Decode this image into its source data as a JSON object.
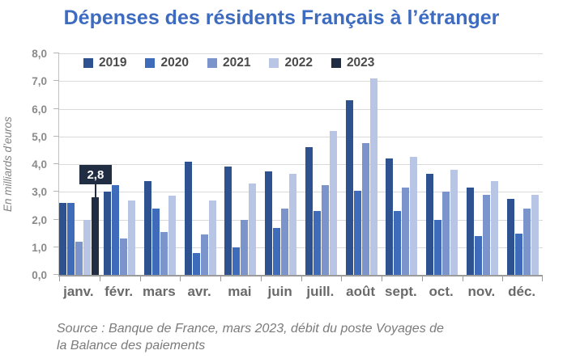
{
  "page": {
    "title": "Dépenses des résidents Français à l’étranger",
    "source_lines": [
      "Source : Banque de France, mars 2023, débit du poste Voyages de",
      "la Balance des paiements"
    ]
  },
  "colors": {
    "title": "#3d6bc0",
    "grid": "#d9d9d9",
    "axis": "#9b9b9b",
    "y_axis_line": "#c2c2c2",
    "tick_label": "#8a8a8a",
    "month_label": "#6a6a6a",
    "legend_label": "#4a4a4a",
    "source_text": "#7b7b7b",
    "callout_bg": "#212d42",
    "callout_text": "#ffffff"
  },
  "chart_data": {
    "type": "bar",
    "title": "Dépenses des résidents Français à l’étranger",
    "xlabel": "",
    "ylabel": "En milliards d’euros",
    "ylim": [
      0,
      8
    ],
    "ytick_step": 1,
    "ytick_labels": [
      "0,0",
      "1,0",
      "2,0",
      "3,0",
      "4,0",
      "5,0",
      "6,0",
      "7,0",
      "8,0"
    ],
    "grid": true,
    "legend_position": "top-inside",
    "categories": [
      "janv.",
      "févr.",
      "mars",
      "avr.",
      "mai",
      "juin",
      "juill.",
      "août",
      "sept.",
      "oct.",
      "nov.",
      "déc."
    ],
    "series": [
      {
        "name": "2019",
        "color": "#2e5290",
        "values": [
          2.6,
          3.0,
          3.4,
          4.1,
          3.9,
          3.75,
          4.6,
          6.3,
          4.2,
          3.65,
          3.15,
          2.75
        ]
      },
      {
        "name": "2020",
        "color": "#3f6cba",
        "values": [
          2.6,
          3.25,
          2.4,
          0.8,
          1.0,
          1.7,
          2.3,
          3.05,
          2.3,
          2.0,
          1.4,
          1.5
        ]
      },
      {
        "name": "2021",
        "color": "#7b94cc",
        "values": [
          1.2,
          1.3,
          1.55,
          1.45,
          2.0,
          2.4,
          3.25,
          4.75,
          3.15,
          3.0,
          2.9,
          2.4
        ]
      },
      {
        "name": "2022",
        "color": "#b8c5e4",
        "values": [
          2.0,
          2.7,
          2.85,
          2.7,
          3.3,
          3.65,
          5.2,
          7.1,
          4.25,
          3.8,
          3.4,
          2.9
        ]
      },
      {
        "name": "2023",
        "color": "#212d42",
        "values": [
          2.8,
          null,
          null,
          null,
          null,
          null,
          null,
          null,
          null,
          null,
          null,
          null
        ]
      }
    ],
    "annotation": {
      "text": "2,8",
      "series_index": 4,
      "category_index": 0
    }
  }
}
